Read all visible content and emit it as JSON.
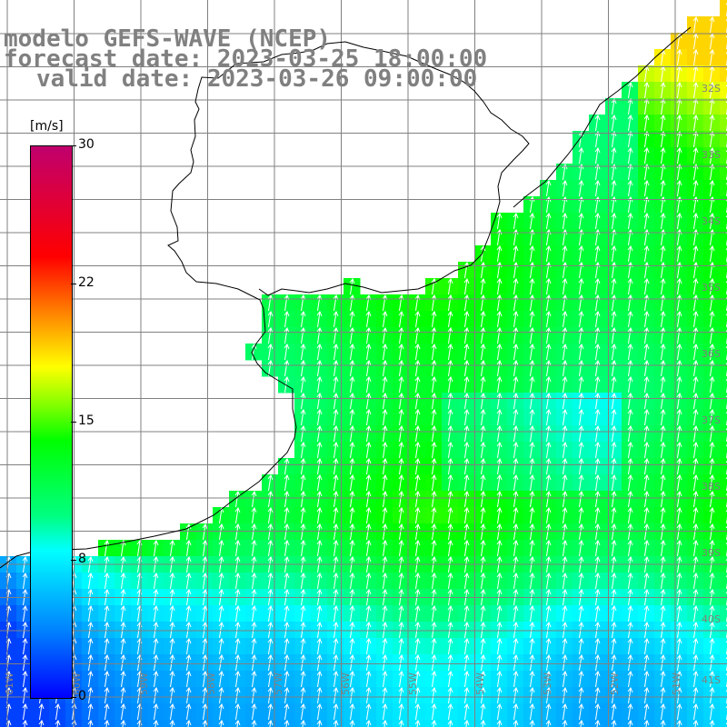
{
  "title_lines": [
    "modelo GEFS-WAVE (NCEP)",
    "forecast date: 2023-03-25 18:00:00",
    "valid date: 2023-03-26 09:00:00"
  ],
  "colorbar": {
    "unit": "[m/s]",
    "ticks": [
      "30",
      "22",
      "15",
      "8",
      "0"
    ],
    "tick_values": [
      30,
      22,
      15,
      8,
      0
    ],
    "colors": [
      "#0000ff",
      "#0080ff",
      "#00ffff",
      "#00ff80",
      "#00ff00",
      "#80ff00",
      "#ffff00",
      "#ff8000",
      "#ff0000",
      "#c0006e"
    ]
  },
  "lat_labels": [
    "32S",
    "33S",
    "34S",
    "35S",
    "36S",
    "37S",
    "38S",
    "39S",
    "40S",
    "41S"
  ],
  "lon_labels": [
    "61W",
    "60W",
    "59W",
    "58W",
    "57W",
    "56W",
    "55W",
    "54W",
    "53W",
    "52W",
    "51W"
  ],
  "map": {
    "land_color": "#ffffff",
    "grid_color": "#808080",
    "coast_color": "#000000",
    "arrow_color": "#ffffff"
  }
}
